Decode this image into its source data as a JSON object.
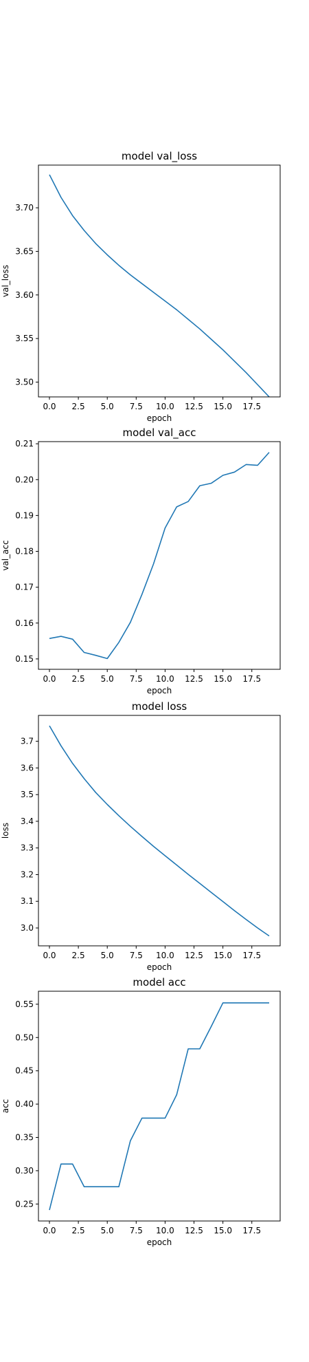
{
  "chart_data": [
    {
      "type": "line",
      "title": "model val_loss",
      "xlabel": "epoch",
      "ylabel": "val_loss",
      "xlim": [
        -0.95,
        19.95
      ],
      "ylim": [
        3.483,
        3.749
      ],
      "xticks": [
        0,
        2.5,
        5,
        7.5,
        10,
        12.5,
        15,
        17.5
      ],
      "xtick_labels": [
        "0.0",
        "2.5",
        "5.0",
        "7.5",
        "10.0",
        "12.5",
        "15.0",
        "17.5"
      ],
      "yticks": [
        3.5,
        3.55,
        3.6,
        3.65,
        3.7
      ],
      "ytick_labels": [
        "3.50",
        "3.55",
        "3.60",
        "3.65",
        "3.70"
      ],
      "grid": false,
      "series": [
        {
          "color": "#1f77b4",
          "x": [
            0,
            1,
            2,
            3,
            4,
            5,
            6,
            7,
            8,
            9,
            10,
            11,
            12,
            13,
            14,
            15,
            16,
            17,
            18,
            19
          ],
          "y": [
            3.738,
            3.712,
            3.691,
            3.674,
            3.659,
            3.646,
            3.634,
            3.623,
            3.613,
            3.603,
            3.593,
            3.583,
            3.572,
            3.561,
            3.549,
            3.537,
            3.524,
            3.511,
            3.497,
            3.483
          ]
        }
      ]
    },
    {
      "type": "line",
      "title": "model val_acc",
      "xlabel": "epoch",
      "ylabel": "val_acc",
      "xlim": [
        -0.95,
        19.95
      ],
      "ylim": [
        0.1471,
        0.2106
      ],
      "xticks": [
        0,
        2.5,
        5,
        7.5,
        10,
        12.5,
        15,
        17.5
      ],
      "xtick_labels": [
        "0.0",
        "2.5",
        "5.0",
        "7.5",
        "10.0",
        "12.5",
        "15.0",
        "17.5"
      ],
      "yticks": [
        0.15,
        0.16,
        0.17,
        0.18,
        0.19,
        0.2,
        0.21
      ],
      "ytick_labels": [
        "0.15",
        "0.16",
        "0.17",
        "0.18",
        "0.19",
        "0.20",
        "0.21"
      ],
      "grid": false,
      "series": [
        {
          "color": "#1f77b4",
          "x": [
            0,
            1,
            2,
            3,
            4,
            5,
            6,
            7,
            8,
            9,
            10,
            11,
            12,
            13,
            14,
            15,
            16,
            17,
            18,
            19
          ],
          "y": [
            0.1557,
            0.1563,
            0.1555,
            0.1518,
            0.151,
            0.1501,
            0.1546,
            0.1602,
            0.168,
            0.1765,
            0.1865,
            0.1924,
            0.1939,
            0.1983,
            0.199,
            0.2012,
            0.2021,
            0.2042,
            0.204,
            0.2076
          ]
        }
      ]
    },
    {
      "type": "line",
      "title": "model loss",
      "xlabel": "epoch",
      "ylabel": "loss",
      "xlim": [
        -0.95,
        19.95
      ],
      "ylim": [
        2.933,
        3.797
      ],
      "xticks": [
        0,
        2.5,
        5,
        7.5,
        10,
        12.5,
        15,
        17.5
      ],
      "xtick_labels": [
        "0.0",
        "2.5",
        "5.0",
        "7.5",
        "10.0",
        "12.5",
        "15.0",
        "17.5"
      ],
      "yticks": [
        3.0,
        3.1,
        3.2,
        3.3,
        3.4,
        3.5,
        3.6,
        3.7
      ],
      "ytick_labels": [
        "3.0",
        "3.1",
        "3.2",
        "3.3",
        "3.4",
        "3.5",
        "3.6",
        "3.7"
      ],
      "grid": false,
      "series": [
        {
          "color": "#1f77b4",
          "x": [
            0,
            1,
            2,
            3,
            4,
            5,
            6,
            7,
            8,
            9,
            10,
            11,
            12,
            13,
            14,
            15,
            16,
            17,
            18,
            19
          ],
          "y": [
            3.758,
            3.683,
            3.617,
            3.56,
            3.508,
            3.463,
            3.421,
            3.381,
            3.343,
            3.306,
            3.271,
            3.236,
            3.201,
            3.167,
            3.133,
            3.099,
            3.065,
            3.032,
            3.0,
            2.97
          ]
        }
      ]
    },
    {
      "type": "line",
      "title": "model acc",
      "xlabel": "epoch",
      "ylabel": "acc",
      "xlim": [
        -0.95,
        19.95
      ],
      "ylim": [
        0.2245,
        0.5695
      ],
      "xticks": [
        0,
        2.5,
        5,
        7.5,
        10,
        12.5,
        15,
        17.5
      ],
      "xtick_labels": [
        "0.0",
        "2.5",
        "5.0",
        "7.5",
        "10.0",
        "12.5",
        "15.0",
        "17.5"
      ],
      "yticks": [
        0.25,
        0.3,
        0.35,
        0.4,
        0.45,
        0.5,
        0.55
      ],
      "ytick_labels": [
        "0.25",
        "0.30",
        "0.35",
        "0.40",
        "0.45",
        "0.50",
        "0.55"
      ],
      "grid": false,
      "series": [
        {
          "color": "#1f77b4",
          "x": [
            0,
            1,
            2,
            3,
            4,
            5,
            6,
            7,
            8,
            9,
            10,
            11,
            12,
            13,
            14,
            15,
            16,
            17,
            18,
            19
          ],
          "y": [
            0.241,
            0.31,
            0.31,
            0.276,
            0.276,
            0.276,
            0.276,
            0.345,
            0.379,
            0.379,
            0.379,
            0.414,
            0.483,
            0.483,
            0.517,
            0.552,
            0.552,
            0.552,
            0.552,
            0.552
          ]
        }
      ]
    }
  ]
}
